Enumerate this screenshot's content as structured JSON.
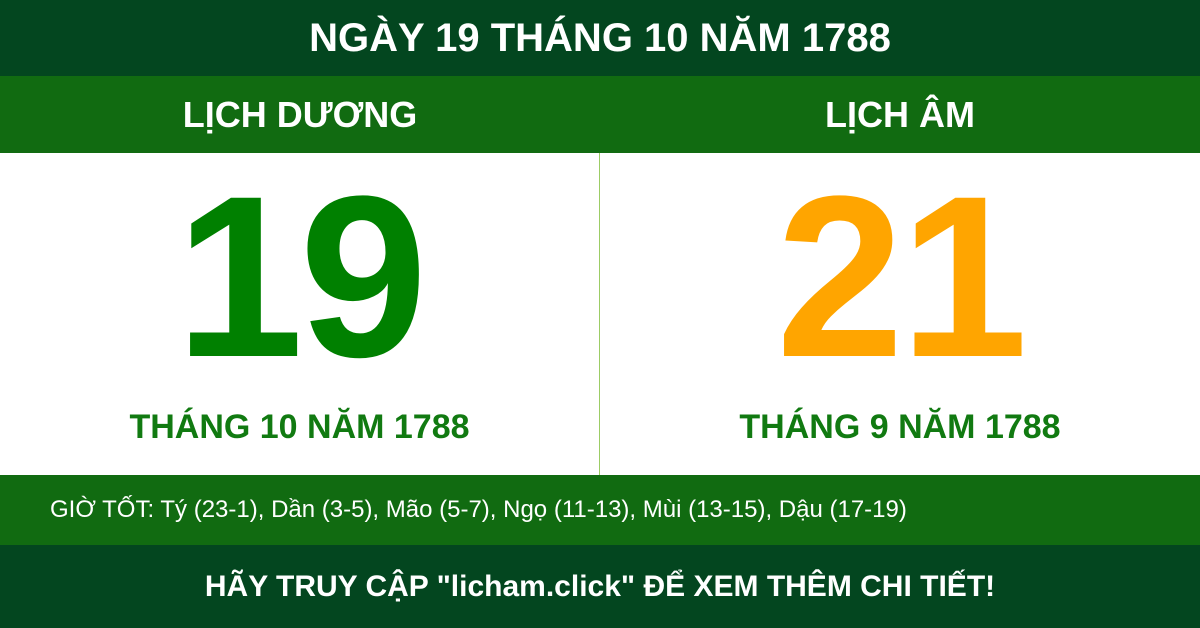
{
  "title": "NGÀY 19 THÁNG 10 NĂM 1788",
  "solar": {
    "label": "LỊCH DƯƠNG",
    "day": "19",
    "month_year": "THÁNG 10 NĂM 1788",
    "color": "#008000"
  },
  "lunar": {
    "label": "LỊCH ÂM",
    "day": "21",
    "month_year": "THÁNG 9 NĂM 1788",
    "color": "#ffa500"
  },
  "good_hours": "GIỜ TỐT: Tý (23-1), Dần (3-5), Mão (5-7), Ngọ (11-13), Mùi (13-15), Dậu (17-19)",
  "footer": "HÃY TRUY CẬP \"licham.click\" ĐỂ XEM THÊM CHI TIẾT!"
}
